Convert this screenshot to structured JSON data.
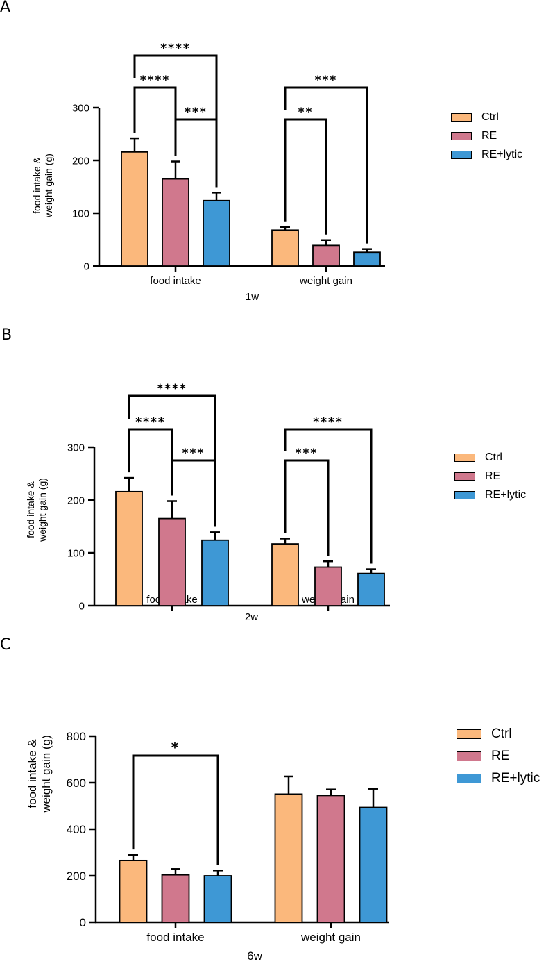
{
  "colors": {
    "ctrl": "#fbb87c",
    "re": "#d0788d",
    "relytic": "#3e98d5"
  },
  "chart_data": [
    {
      "type": "bar",
      "panel_label": "A",
      "title": "1w",
      "xlabel": "1w",
      "ylabel": "food intake & weight gain (g)",
      "ylabel_lines": [
        "food intake &",
        "weight gain (g)"
      ],
      "categories": [
        "food intake",
        "weight gain"
      ],
      "ylim": [
        0,
        300
      ],
      "yticks": [
        0,
        100,
        200,
        300
      ],
      "series": [
        {
          "name": "Ctrl",
          "values": [
            216,
            68
          ],
          "errors": [
            26,
            6
          ]
        },
        {
          "name": "RE",
          "values": [
            165,
            39
          ],
          "errors": [
            33,
            10
          ]
        },
        {
          "name": "RE+lytic",
          "values": [
            124,
            26
          ],
          "errors": [
            15,
            6
          ]
        }
      ],
      "significance": [
        {
          "category": 0,
          "from": 0,
          "to": 1,
          "label": "****",
          "level": 0
        },
        {
          "category": 0,
          "from": 1,
          "to": 2,
          "label": "***",
          "level": 0
        },
        {
          "category": 0,
          "from": 0,
          "to": 2,
          "label": "****",
          "level": 1
        },
        {
          "category": 1,
          "from": 0,
          "to": 1,
          "label": "**",
          "level": 0
        },
        {
          "category": 1,
          "from": 0,
          "to": 2,
          "label": "***",
          "level": 1
        }
      ],
      "legend": [
        "Ctrl",
        "RE",
        "RE+lytic"
      ]
    },
    {
      "type": "bar",
      "panel_label": "B",
      "title": "2w",
      "xlabel": "2w",
      "ylabel": "food intake & weight gain (g)",
      "ylabel_lines": [
        "food intake &",
        "weight gain (g)"
      ],
      "categories": [
        "food intake",
        "weight gain"
      ],
      "ylim": [
        0,
        300
      ],
      "yticks": [
        0,
        100,
        200,
        300
      ],
      "series": [
        {
          "name": "Ctrl",
          "values": [
            216,
            117
          ],
          "errors": [
            26,
            10
          ]
        },
        {
          "name": "RE",
          "values": [
            165,
            73
          ],
          "errors": [
            33,
            11
          ]
        },
        {
          "name": "RE+lytic",
          "values": [
            124,
            61
          ],
          "errors": [
            15,
            8
          ]
        }
      ],
      "significance": [
        {
          "category": 0,
          "from": 0,
          "to": 1,
          "label": "****",
          "level": 0
        },
        {
          "category": 0,
          "from": 1,
          "to": 2,
          "label": "***",
          "level": 0
        },
        {
          "category": 0,
          "from": 0,
          "to": 2,
          "label": "****",
          "level": 1
        },
        {
          "category": 1,
          "from": 0,
          "to": 1,
          "label": "***",
          "level": 0
        },
        {
          "category": 1,
          "from": 0,
          "to": 2,
          "label": "****",
          "level": 1
        }
      ],
      "legend": [
        "Ctrl",
        "RE",
        "RE+lytic"
      ]
    },
    {
      "type": "bar",
      "panel_label": "C",
      "title": "6w",
      "xlabel": "6w",
      "ylabel": "food intake & weight gain (g)",
      "ylabel_lines": [
        "food intake &",
        "weight gain (g)"
      ],
      "categories": [
        "food intake",
        "weight gain"
      ],
      "ylim": [
        0,
        800
      ],
      "yticks": [
        0,
        200,
        400,
        600,
        800
      ],
      "series": [
        {
          "name": "Ctrl",
          "values": [
            266,
            551
          ],
          "errors": [
            23,
            76
          ]
        },
        {
          "name": "RE",
          "values": [
            204,
            545
          ],
          "errors": [
            25,
            26
          ]
        },
        {
          "name": "RE+lytic",
          "values": [
            200,
            494
          ],
          "errors": [
            23,
            80
          ]
        }
      ],
      "significance": [
        {
          "category": 0,
          "from": 0,
          "to": 2,
          "label": "*",
          "level": 0
        }
      ],
      "legend": [
        "Ctrl",
        "RE",
        "RE+lytic"
      ]
    }
  ]
}
